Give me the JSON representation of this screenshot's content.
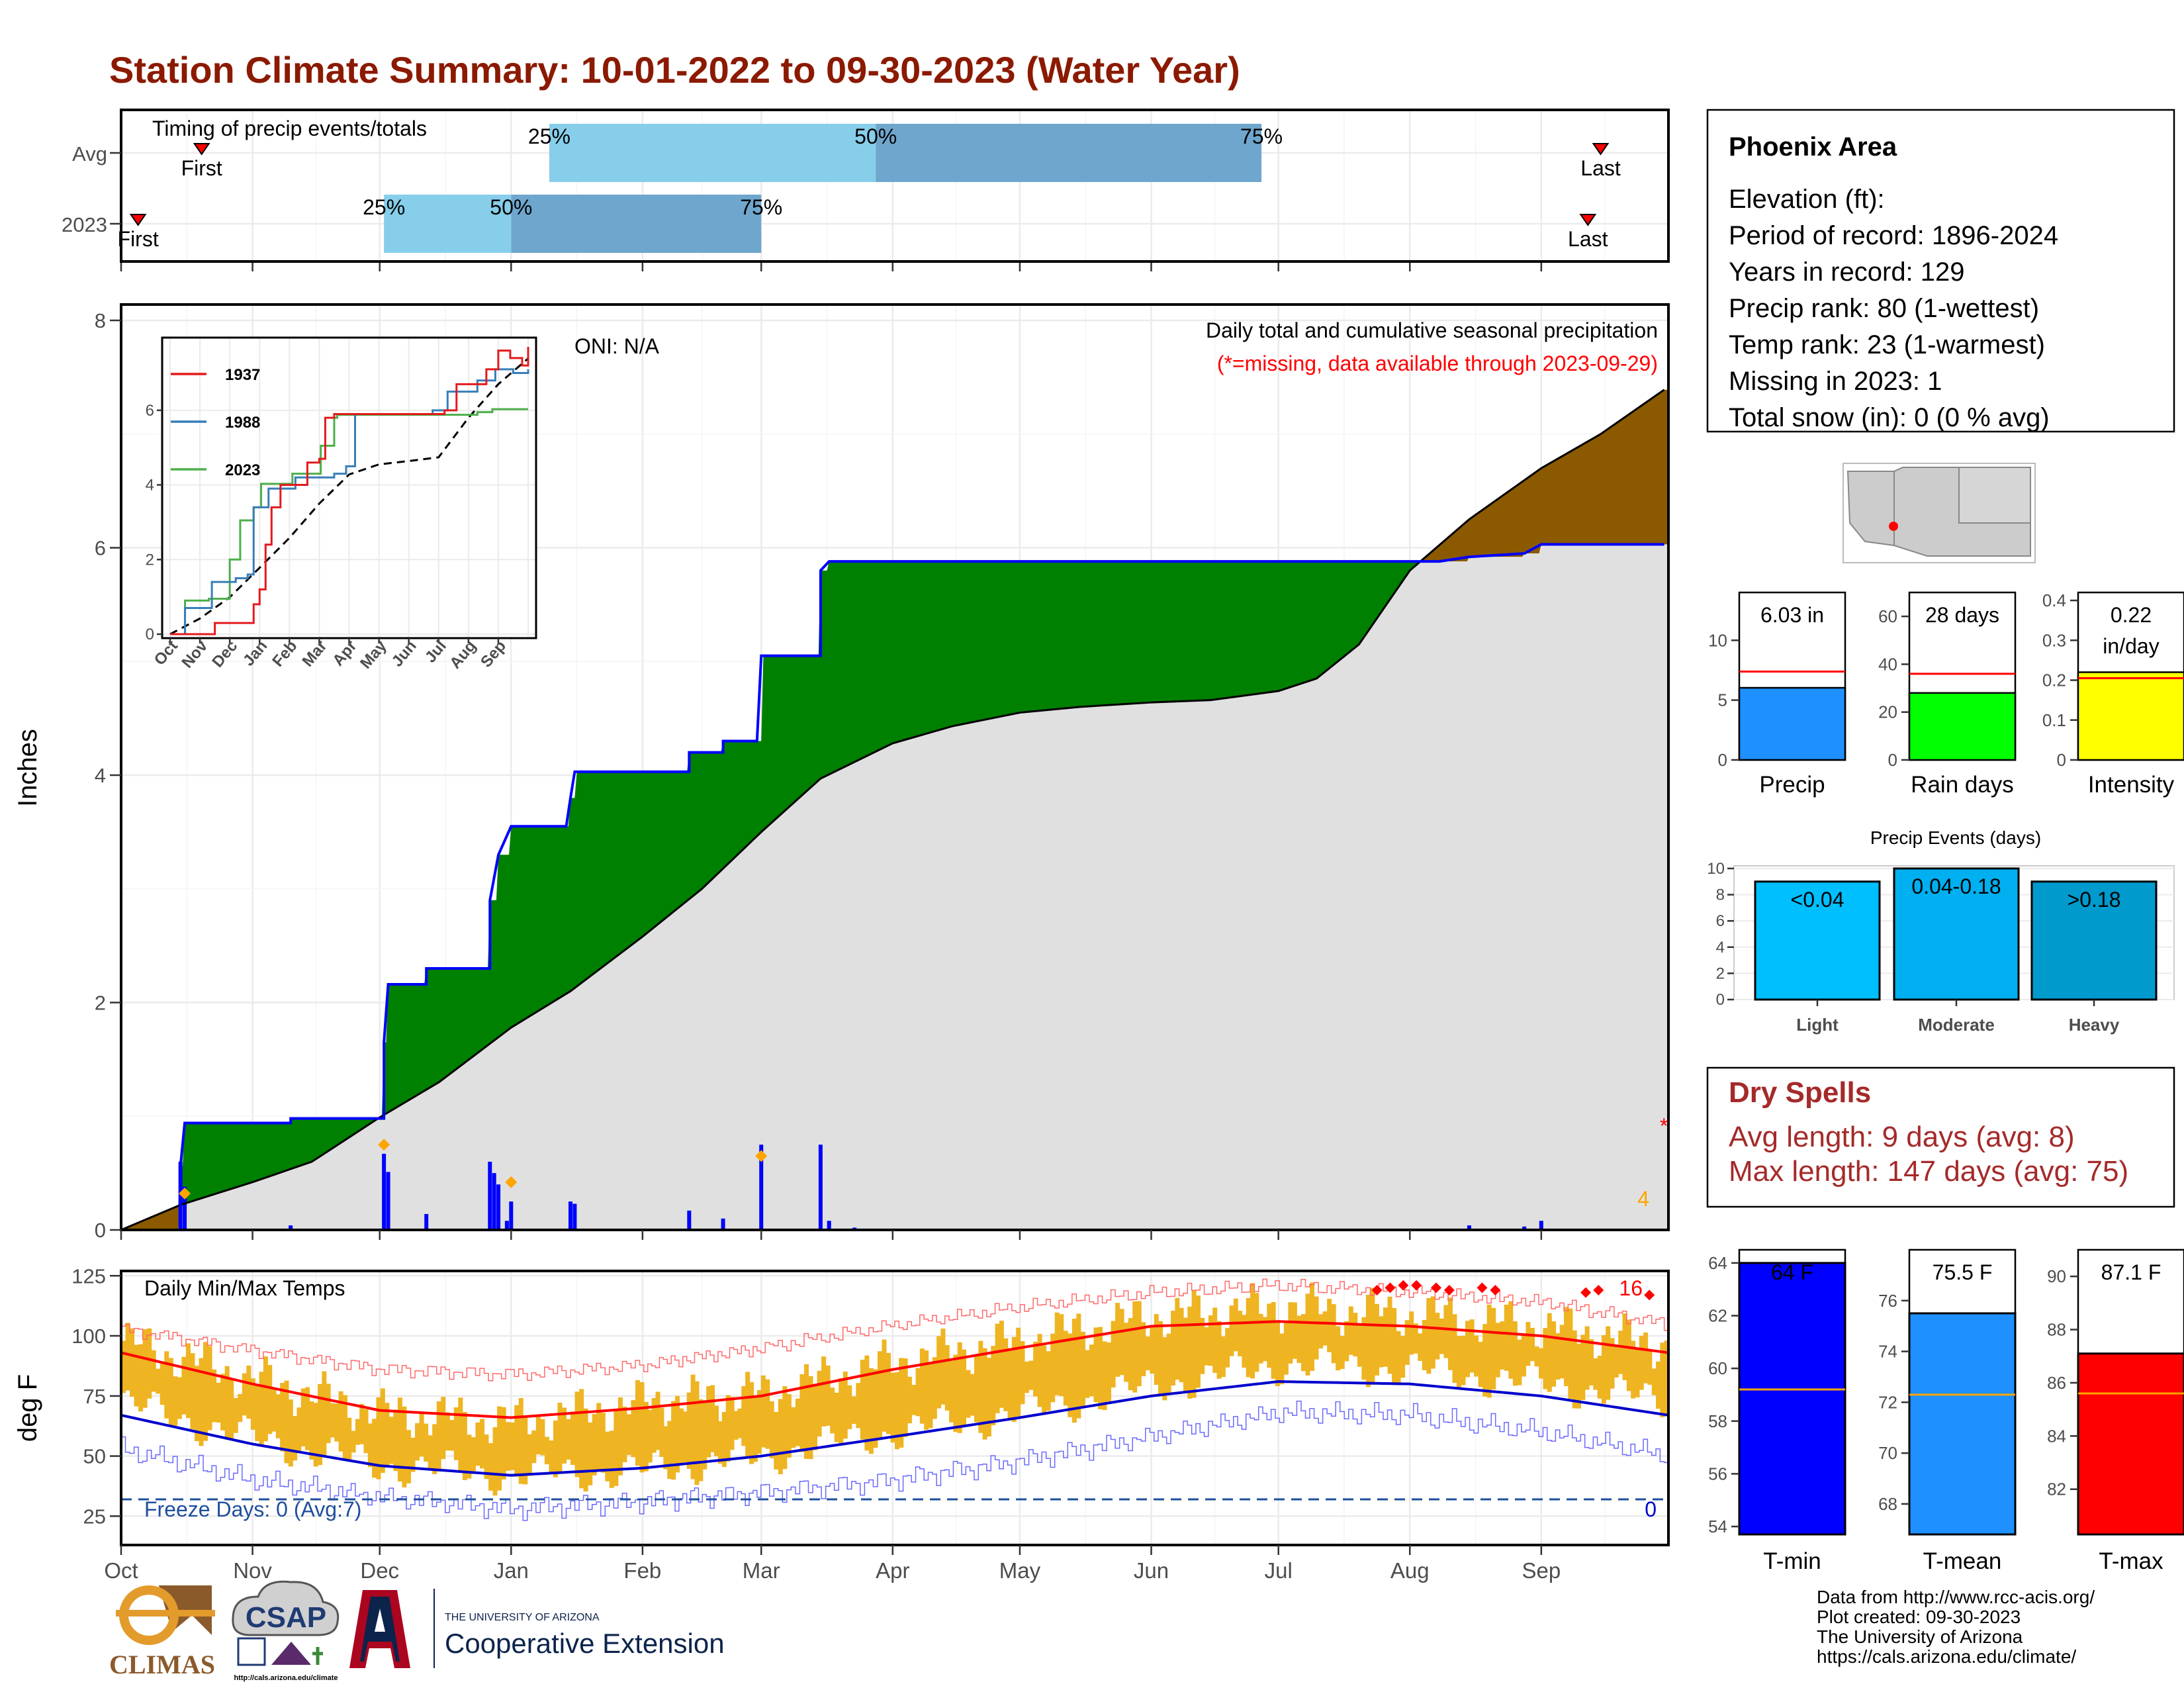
{
  "title": "Station Climate Summary: 10-01-2022 to 09-30-2023 (Water Year)",
  "months": [
    "Oct",
    "Nov",
    "Dec",
    "Jan",
    "Feb",
    "Mar",
    "Apr",
    "May",
    "Jun",
    "Jul",
    "Aug",
    "Sep"
  ],
  "colors": {
    "title": "#8b1a00",
    "q_light": "#87ceeb",
    "q_dark": "#6fa6cd",
    "above": "#008000",
    "below": "#8b5a00",
    "climo_fill": "#e0e0e0",
    "cum": "#0000ff",
    "tmax_normal": "#ff0000",
    "tmin_normal": "#0000cd",
    "daily_temp": "#eeb422",
    "dry": "#a52a2a",
    "line_1937": "#e41a1c",
    "line_1988": "#377eb8",
    "line_2023": "#4daf4a"
  },
  "timing": {
    "label": "Timing of precip events/totals",
    "row_labels": [
      "Avg",
      "2023"
    ],
    "first_label": "First",
    "last_label": "Last",
    "pct_labels": [
      "25%",
      "50%",
      "75%"
    ],
    "avg": {
      "first": "2022-10-20",
      "p25": "2023-01-10",
      "p50": "2023-03-28",
      "p75": "2023-06-27",
      "last": "2023-09-15"
    },
    "y2023": {
      "first": "2022-10-05",
      "p25": "2022-12-02",
      "p50": "2023-01-01",
      "p75": "2023-03-01",
      "last": "2023-09-12"
    }
  },
  "precip": {
    "ylabel": "Inches",
    "title": "Daily total and cumulative seasonal precipitation",
    "subtitle": "(*=missing, data available through 2023-09-29)",
    "oni": "ONI: N/A",
    "missing_marker": "*",
    "missing_count": "4",
    "ylim": [
      0,
      8
    ],
    "yticks": [
      0,
      2,
      4,
      6,
      8
    ],
    "normal_total": 7.39,
    "cumulative_2023": [
      [
        "2022-10-01",
        0
      ],
      [
        "2022-10-15",
        0
      ],
      [
        "2022-10-15",
        0.56
      ],
      [
        "2022-10-16",
        0.94
      ],
      [
        "2022-11-10",
        0.94
      ],
      [
        "2022-11-10",
        0.98
      ],
      [
        "2022-12-02",
        0.98
      ],
      [
        "2022-12-02",
        1.65
      ],
      [
        "2022-12-03",
        2.16
      ],
      [
        "2022-12-12",
        2.16
      ],
      [
        "2022-12-12",
        2.3
      ],
      [
        "2022-12-27",
        2.3
      ],
      [
        "2022-12-27",
        2.9
      ],
      [
        "2022-12-29",
        3.3
      ],
      [
        "2023-01-01",
        3.55
      ],
      [
        "2023-01-14",
        3.55
      ],
      [
        "2023-01-15",
        3.8
      ],
      [
        "2023-01-16",
        4.03
      ],
      [
        "2023-02-12",
        4.03
      ],
      [
        "2023-02-12",
        4.2
      ],
      [
        "2023-02-20",
        4.2
      ],
      [
        "2023-02-20",
        4.3
      ],
      [
        "2023-02-28",
        4.3
      ],
      [
        "2023-03-01",
        5.05
      ],
      [
        "2023-03-15",
        5.05
      ],
      [
        "2023-03-15",
        5.8
      ],
      [
        "2023-03-17",
        5.88
      ],
      [
        "2023-08-08",
        5.88
      ],
      [
        "2023-08-15",
        5.92
      ],
      [
        "2023-08-28",
        5.95
      ],
      [
        "2023-09-01",
        6.03
      ],
      [
        "2023-09-30",
        6.03
      ]
    ],
    "normal_cumulative": [
      [
        "2022-10-01",
        0
      ],
      [
        "2022-10-15",
        0.22
      ],
      [
        "2022-11-01",
        0.42
      ],
      [
        "2022-11-15",
        0.6
      ],
      [
        "2022-12-01",
        0.99
      ],
      [
        "2022-12-15",
        1.3
      ],
      [
        "2023-01-01",
        1.78
      ],
      [
        "2023-01-15",
        2.1
      ],
      [
        "2023-02-01",
        2.58
      ],
      [
        "2023-02-15",
        3.0
      ],
      [
        "2023-03-01",
        3.5
      ],
      [
        "2023-03-15",
        3.97
      ],
      [
        "2023-04-01",
        4.28
      ],
      [
        "2023-04-15",
        4.43
      ],
      [
        "2023-05-01",
        4.55
      ],
      [
        "2023-05-15",
        4.6
      ],
      [
        "2023-06-01",
        4.64
      ],
      [
        "2023-06-15",
        4.66
      ],
      [
        "2023-07-01",
        4.74
      ],
      [
        "2023-07-10",
        4.85
      ],
      [
        "2023-07-20",
        5.15
      ],
      [
        "2023-08-01",
        5.8
      ],
      [
        "2023-08-15",
        6.25
      ],
      [
        "2023-09-01",
        6.7
      ],
      [
        "2023-09-15",
        7.0
      ],
      [
        "2023-09-30",
        7.39
      ]
    ],
    "daily_bars": [
      [
        "2022-10-15",
        0.6
      ],
      [
        "2022-10-16",
        0.38
      ],
      [
        "2022-11-10",
        0.04
      ],
      [
        "2022-12-02",
        0.67
      ],
      [
        "2022-12-03",
        0.51
      ],
      [
        "2022-12-12",
        0.14
      ],
      [
        "2022-12-27",
        0.6
      ],
      [
        "2022-12-28",
        0.5
      ],
      [
        "2022-12-29",
        0.4
      ],
      [
        "2022-12-31",
        0.08
      ],
      [
        "2023-01-01",
        0.25
      ],
      [
        "2023-01-15",
        0.25
      ],
      [
        "2023-01-16",
        0.23
      ],
      [
        "2023-02-12",
        0.17
      ],
      [
        "2023-02-20",
        0.1
      ],
      [
        "2023-03-01",
        0.75
      ],
      [
        "2023-03-15",
        0.75
      ],
      [
        "2023-03-17",
        0.08
      ],
      [
        "2023-03-23",
        0.02
      ],
      [
        "2023-08-15",
        0.04
      ],
      [
        "2023-08-28",
        0.03
      ],
      [
        "2023-09-01",
        0.08
      ]
    ],
    "record_markers": [
      [
        "2022-10-16",
        0.32
      ],
      [
        "2022-12-02",
        0.75
      ],
      [
        "2023-01-01",
        0.42
      ],
      [
        "2023-03-01",
        0.65
      ]
    ]
  },
  "inset": {
    "legend": [
      "1937",
      "1988",
      "2023"
    ],
    "yticks": [
      0,
      2,
      4,
      6
    ],
    "ylim": [
      0,
      7.7
    ],
    "xlabels": [
      "Oct",
      "Nov",
      "Dec",
      "Jan",
      "Feb",
      "Mar",
      "Apr",
      "May",
      "Jun",
      "Jul",
      "Aug",
      "Sep"
    ],
    "series_1937": [
      [
        0,
        0
      ],
      [
        1.2,
        0
      ],
      [
        1.5,
        0.3
      ],
      [
        2.6,
        0.3
      ],
      [
        2.8,
        0.8
      ],
      [
        3.0,
        1.2
      ],
      [
        3.2,
        2.4
      ],
      [
        3.4,
        3.4
      ],
      [
        3.7,
        4.0
      ],
      [
        4.6,
        4.6
      ],
      [
        5.0,
        4.7
      ],
      [
        5.2,
        5.8
      ],
      [
        5.5,
        5.9
      ],
      [
        9.2,
        6.0
      ],
      [
        9.6,
        6.7
      ],
      [
        10.6,
        7.1
      ],
      [
        11.0,
        7.6
      ],
      [
        11.2,
        7.6
      ],
      [
        11.4,
        7.4
      ],
      [
        11.8,
        7.2
      ],
      [
        12.0,
        7.7
      ]
    ],
    "series_1988": [
      [
        0,
        0
      ],
      [
        0.3,
        0
      ],
      [
        0.5,
        0.7
      ],
      [
        1.1,
        0.7
      ],
      [
        1.4,
        1.4
      ],
      [
        2.2,
        1.5
      ],
      [
        2.6,
        1.6
      ],
      [
        2.8,
        3.4
      ],
      [
        3.3,
        3.9
      ],
      [
        4.2,
        4.2
      ],
      [
        4.8,
        4.2
      ],
      [
        5.5,
        4.3
      ],
      [
        5.9,
        4.5
      ],
      [
        6.0,
        4.5
      ],
      [
        6.2,
        5.9
      ],
      [
        8.8,
        6.0
      ],
      [
        9.3,
        6.5
      ],
      [
        10.3,
        6.8
      ],
      [
        10.9,
        7.1
      ],
      [
        11.5,
        7.0
      ],
      [
        12.0,
        7.1
      ]
    ],
    "series_2023": [
      [
        0,
        0
      ],
      [
        0.45,
        0
      ],
      [
        0.5,
        0.9
      ],
      [
        1.3,
        0.95
      ],
      [
        1.9,
        0.95
      ],
      [
        2.0,
        2.0
      ],
      [
        2.35,
        3.05
      ],
      [
        2.8,
        3.4
      ],
      [
        3.05,
        4.03
      ],
      [
        4.1,
        4.3
      ],
      [
        5.0,
        4.3
      ],
      [
        5.05,
        5.05
      ],
      [
        5.5,
        5.8
      ],
      [
        5.6,
        5.88
      ],
      [
        10.3,
        5.95
      ],
      [
        10.8,
        6.03
      ],
      [
        12.0,
        6.03
      ]
    ],
    "series_normal": [
      [
        0,
        0
      ],
      [
        1,
        0.42
      ],
      [
        2,
        0.99
      ],
      [
        3,
        1.78
      ],
      [
        4,
        2.58
      ],
      [
        5,
        3.5
      ],
      [
        6,
        4.28
      ],
      [
        7,
        4.55
      ],
      [
        8,
        4.64
      ],
      [
        9,
        4.74
      ],
      [
        10,
        5.8
      ],
      [
        11,
        6.7
      ],
      [
        12,
        7.39
      ]
    ]
  },
  "temps": {
    "ylabel": "deg F",
    "label": "Daily Min/Max Temps",
    "freeze_label": "Freeze Days: 0 (Avg:7)",
    "freeze_line": 32,
    "record_high_count": "16",
    "record_low_count": "0",
    "ylim": [
      13,
      127
    ],
    "yticks": [
      25,
      50,
      75,
      100,
      125
    ],
    "normal_max": [
      [
        0,
        93
      ],
      [
        1,
        80
      ],
      [
        2,
        69
      ],
      [
        3,
        66
      ],
      [
        4,
        70
      ],
      [
        5,
        75
      ],
      [
        6,
        86
      ],
      [
        7,
        95
      ],
      [
        8,
        104
      ],
      [
        9,
        106
      ],
      [
        10,
        104
      ],
      [
        11,
        100
      ],
      [
        12,
        93
      ]
    ],
    "normal_min": [
      [
        0,
        67
      ],
      [
        1,
        55
      ],
      [
        2,
        46
      ],
      [
        3,
        42
      ],
      [
        4,
        45
      ],
      [
        5,
        50
      ],
      [
        6,
        58
      ],
      [
        7,
        66
      ],
      [
        8,
        75
      ],
      [
        9,
        81
      ],
      [
        10,
        80
      ],
      [
        11,
        75
      ],
      [
        12,
        67
      ]
    ],
    "record_max": [
      [
        0,
        103
      ],
      [
        1,
        94
      ],
      [
        2,
        86
      ],
      [
        3,
        84
      ],
      [
        4,
        88
      ],
      [
        5,
        95
      ],
      [
        6,
        104
      ],
      [
        7,
        112
      ],
      [
        8,
        118
      ],
      [
        9,
        121
      ],
      [
        10,
        118
      ],
      [
        11,
        114
      ],
      [
        12,
        105
      ]
    ],
    "record_min": [
      [
        0,
        53
      ],
      [
        1,
        40
      ],
      [
        2,
        33
      ],
      [
        3,
        28
      ],
      [
        4,
        31
      ],
      [
        5,
        35
      ],
      [
        6,
        40
      ],
      [
        7,
        48
      ],
      [
        8,
        58
      ],
      [
        9,
        68
      ],
      [
        10,
        67
      ],
      [
        11,
        60
      ],
      [
        12,
        50
      ]
    ],
    "daily_max": [
      [
        0,
        98
      ],
      [
        1,
        82
      ],
      [
        2,
        68
      ],
      [
        3,
        64
      ],
      [
        4,
        72
      ],
      [
        5,
        76
      ],
      [
        6,
        89
      ],
      [
        7,
        98
      ],
      [
        8,
        108
      ],
      [
        9,
        112
      ],
      [
        10,
        109
      ],
      [
        11,
        104
      ],
      [
        12,
        96
      ]
    ],
    "daily_min": [
      [
        0,
        72
      ],
      [
        1,
        57
      ],
      [
        2,
        46
      ],
      [
        3,
        42
      ],
      [
        4,
        44
      ],
      [
        5,
        50
      ],
      [
        6,
        60
      ],
      [
        7,
        68
      ],
      [
        8,
        79
      ],
      [
        9,
        88
      ],
      [
        10,
        86
      ],
      [
        11,
        80
      ],
      [
        12,
        73
      ]
    ],
    "record_high_markers": [
      [
        9.75,
        119
      ],
      [
        9.85,
        120
      ],
      [
        9.95,
        121
      ],
      [
        10.05,
        121
      ],
      [
        10.2,
        120
      ],
      [
        10.3,
        119
      ],
      [
        10.55,
        120
      ],
      [
        10.65,
        119
      ],
      [
        11.35,
        118
      ],
      [
        11.45,
        119
      ],
      [
        11.85,
        117
      ]
    ]
  },
  "station": {
    "name": "Phoenix Area",
    "lines": [
      "Elevation (ft):",
      "Period of record: 1896-2024",
      "Years in record: 129",
      "Precip rank: 80 (1-wettest)",
      "Temp rank: 23 (1-warmest)",
      "Missing in 2023: 1",
      "Total snow (in): 0 (0 % avg)"
    ]
  },
  "summary_bars": [
    {
      "name": "Precip",
      "value_label": "6.03 in",
      "value": 6.03,
      "normal": 7.39,
      "ylim": [
        0,
        14
      ],
      "yticks": [
        0,
        5,
        10
      ],
      "color": "#1e90ff"
    },
    {
      "name": "Rain days",
      "value_label": "28 days",
      "value": 28,
      "normal": 36,
      "ylim": [
        0,
        70
      ],
      "yticks": [
        0,
        20,
        40,
        60
      ],
      "color": "#00ff00"
    },
    {
      "name": "Intensity",
      "value_label": "0.22 in/day",
      "value_line1": "0.22",
      "value_line2": "in/day",
      "value": 0.22,
      "normal": 0.205,
      "ylim": [
        0,
        0.42
      ],
      "yticks": [
        0.0,
        0.1,
        0.2,
        0.3,
        0.4
      ],
      "color": "#ffff00"
    }
  ],
  "events": {
    "title": "Precip Events (days)",
    "ylim": [
      0,
      10.2
    ],
    "yticks": [
      0,
      2,
      4,
      6,
      8,
      10
    ],
    "bars": [
      {
        "name": "Light",
        "range": "<0.04",
        "value": 9,
        "color": "#00bfff"
      },
      {
        "name": "Moderate",
        "range": "0.04-0.18",
        "value": 10,
        "color": "#00afef"
      },
      {
        "name": "Heavy",
        "range": ">0.18",
        "value": 9,
        "color": "#009acd"
      }
    ]
  },
  "dry_spells": {
    "title": "Dry Spells",
    "avg": "Avg length: 9 days (avg: 8)",
    "max": "Max length: 147 days (avg: 75)"
  },
  "temp_bars": [
    {
      "name": "T-min",
      "value_label": "64 F",
      "value": 64,
      "normal": 59.2,
      "ylim": [
        53.7,
        64.5
      ],
      "yticks": [
        54,
        56,
        58,
        60,
        62,
        64
      ],
      "color": "#0000ff"
    },
    {
      "name": "T-mean",
      "value_label": "75.5 F",
      "value": 75.5,
      "normal": 72.3,
      "ylim": [
        66.8,
        78.0
      ],
      "yticks": [
        68,
        70,
        72,
        74,
        76
      ],
      "color": "#1e90ff"
    },
    {
      "name": "T-max",
      "value_label": "87.1 F",
      "value": 87.1,
      "normal": 85.6,
      "ylim": [
        80.3,
        91.0
      ],
      "yticks": [
        82,
        84,
        86,
        88,
        90
      ],
      "color": "#ff0000"
    }
  ],
  "credits": [
    "Data from http://www.rcc-acis.org/",
    "Plot created: 09-30-2023",
    "The University of Arizona",
    "https://cals.arizona.edu/climate/"
  ],
  "logos": {
    "climas": "CLIMAS",
    "csap": "CSAP",
    "csap_url": "http://cals.arizona.edu/climate",
    "ua_small": "THE UNIVERSITY OF ARIZONA",
    "ua_big": "Cooperative Extension"
  }
}
